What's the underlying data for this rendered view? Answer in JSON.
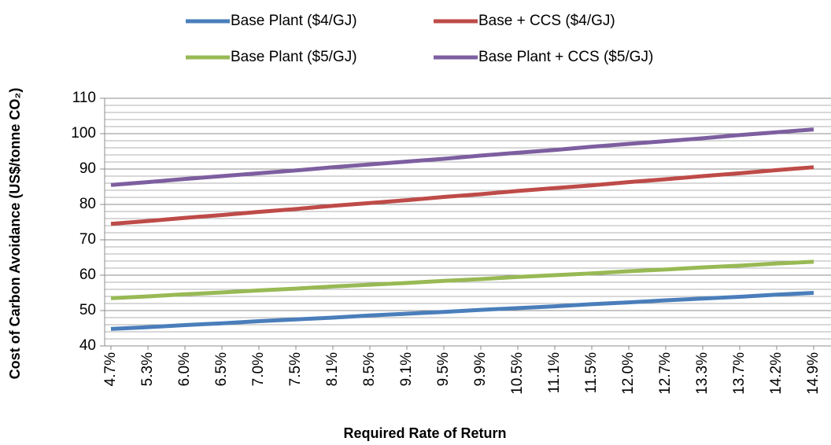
{
  "chart_data": {
    "type": "line",
    "x_label": "Required Rate of Return",
    "y_label": "Cost of Carbon Avoidance (US$/tonne CO₂)",
    "categories": [
      "4.7%",
      "5.3%",
      "6.0%",
      "6.5%",
      "7.0%",
      "7.5%",
      "8.1%",
      "8.5%",
      "9.1%",
      "9.5%",
      "9.9%",
      "10.5%",
      "11.1%",
      "11.5%",
      "12.0%",
      "12.7%",
      "13.3%",
      "13.7%",
      "14.2%",
      "14.9%"
    ],
    "series": [
      {
        "name": "Base Plant ($4/GJ)",
        "color": "#4a7ebb",
        "values": [
          44.8,
          45.3,
          45.9,
          46.4,
          47.0,
          47.5,
          48.0,
          48.6,
          49.1,
          49.6,
          50.2,
          50.7,
          51.2,
          51.8,
          52.3,
          52.9,
          53.4,
          53.9,
          54.5,
          55.0
        ]
      },
      {
        "name": "Base + CCS ($4/GJ)",
        "color": "#be4b48",
        "values": [
          74.5,
          75.3,
          76.2,
          77.0,
          77.9,
          78.7,
          79.6,
          80.4,
          81.2,
          82.1,
          82.9,
          83.8,
          84.6,
          85.4,
          86.3,
          87.1,
          88.0,
          88.8,
          89.7,
          90.5
        ]
      },
      {
        "name": "Base Plant ($5/GJ)",
        "color": "#98b954",
        "values": [
          53.5,
          54.0,
          54.6,
          55.1,
          55.7,
          56.2,
          56.8,
          57.3,
          57.8,
          58.4,
          58.9,
          59.5,
          60.0,
          60.5,
          61.1,
          61.6,
          62.2,
          62.7,
          63.3,
          63.8
        ]
      },
      {
        "name": "Base Plant + CCS ($5/GJ)",
        "color": "#7d5fa0",
        "values": [
          85.5,
          86.3,
          87.2,
          88.0,
          88.8,
          89.6,
          90.5,
          91.3,
          92.1,
          92.9,
          93.8,
          94.6,
          95.4,
          96.3,
          97.1,
          97.9,
          98.7,
          99.6,
          100.4,
          101.2
        ]
      }
    ],
    "ylim": [
      40,
      110
    ],
    "yticks": [
      40,
      50,
      60,
      70,
      80,
      90,
      100,
      110
    ],
    "grid": true,
    "minor_grid": true,
    "legend": "top"
  }
}
